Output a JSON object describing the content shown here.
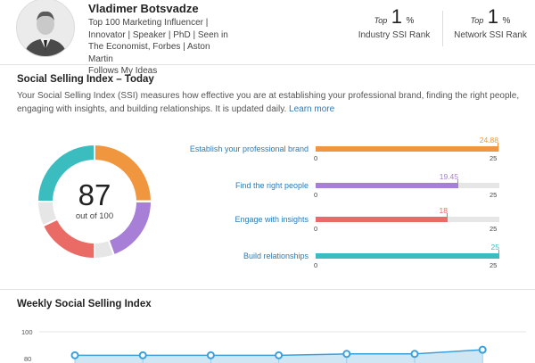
{
  "profile": {
    "name": "Vladimer Botsvadze",
    "headline_lines": [
      "Top 100 Marketing Influencer |",
      "Innovator | Speaker | PhD | Seen in",
      "The Economist, Forbes | Aston Martin",
      "Follows My Ideas"
    ]
  },
  "ranks": [
    {
      "top": "Top",
      "number": "1",
      "pct": "%",
      "label": "Industry SSI Rank"
    },
    {
      "top": "Top",
      "number": "1",
      "pct": "%",
      "label": "Network SSI Rank"
    }
  ],
  "ssi": {
    "title": "Social Selling Index – Today",
    "description": "Your Social Selling Index (SSI) measures how effective you are at establishing your professional brand, finding the right people, engaging with insights, and building relationships. It is updated daily.",
    "learn_more": "Learn more",
    "score": "87",
    "out_of": "out of 100",
    "components": [
      {
        "label": "Establish your professional brand",
        "value": 24.88,
        "value_text": "24.88",
        "min": "0",
        "max": "25",
        "color": "#f0963f"
      },
      {
        "label": "Find the right people",
        "value": 19.45,
        "value_text": "19.45",
        "min": "0",
        "max": "25",
        "color": "#a77fd6"
      },
      {
        "label": "Engage with insights",
        "value": 18,
        "value_text": "18",
        "min": "0",
        "max": "25",
        "color": "#ea6b66"
      },
      {
        "label": "Build relationships",
        "value": 25,
        "value_text": "25",
        "min": "0",
        "max": "25",
        "color": "#3bbdbf"
      }
    ],
    "remainder_color": "#e6e6e6"
  },
  "weekly": {
    "title": "Weekly Social Selling Index",
    "y_ticks": [
      "100",
      "80"
    ],
    "values": [
      83,
      83,
      83,
      83,
      84,
      84,
      87
    ],
    "ylim": [
      70,
      100
    ],
    "color": "#3aa0dc"
  }
}
